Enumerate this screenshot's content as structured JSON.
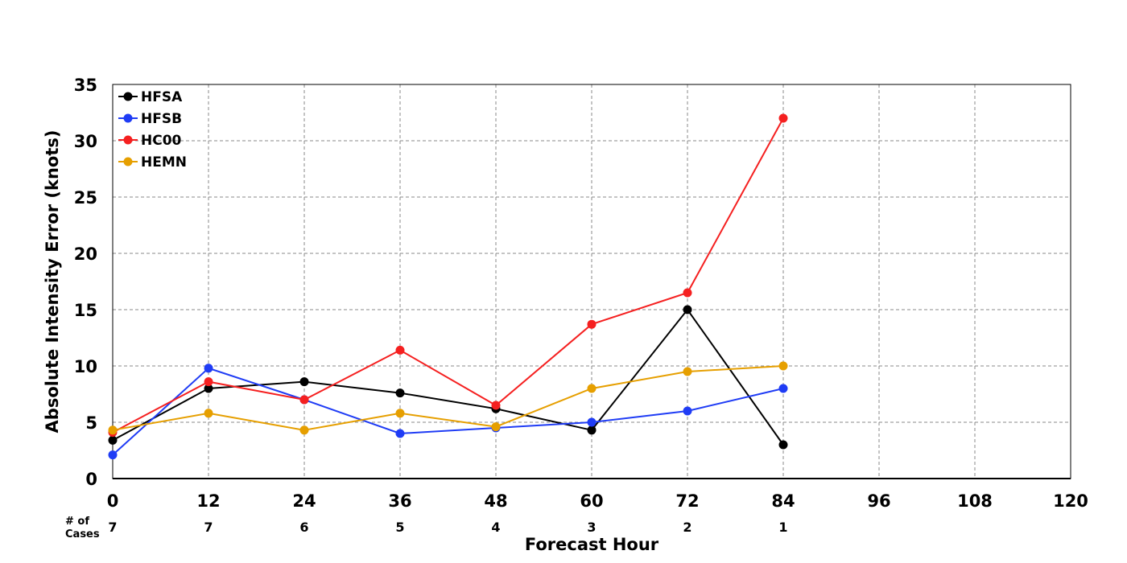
{
  "chart_data": {
    "type": "line",
    "xlabel": "Forecast Hour",
    "ylabel": "Absolute Intensity Error (knots)",
    "xlim": [
      0,
      120
    ],
    "ylim": [
      0,
      35
    ],
    "x_ticks": [
      0,
      12,
      24,
      36,
      48,
      60,
      72,
      84,
      96,
      108,
      120
    ],
    "y_ticks": [
      0,
      5,
      10,
      15,
      20,
      25,
      30,
      35
    ],
    "grid": true,
    "legend_position": "top-left",
    "cases_label": "# of\nCases",
    "cases": [
      {
        "x": 0,
        "n": "7"
      },
      {
        "x": 12,
        "n": "7"
      },
      {
        "x": 24,
        "n": "6"
      },
      {
        "x": 36,
        "n": "5"
      },
      {
        "x": 48,
        "n": "4"
      },
      {
        "x": 60,
        "n": "3"
      },
      {
        "x": 72,
        "n": "2"
      },
      {
        "x": 84,
        "n": "1"
      }
    ],
    "series": [
      {
        "name": "HFSA",
        "color": "#000000",
        "x": [
          0,
          12,
          24,
          36,
          48,
          60,
          72,
          84
        ],
        "values": [
          3.4,
          8.0,
          8.6,
          7.6,
          6.2,
          4.3,
          15.0,
          3.0
        ]
      },
      {
        "name": "HFSB",
        "color": "#1f3cf5",
        "x": [
          0,
          12,
          24,
          36,
          48,
          60,
          72,
          84
        ],
        "values": [
          2.1,
          9.8,
          7.0,
          4.0,
          4.5,
          5.0,
          6.0,
          8.0
        ]
      },
      {
        "name": "HC00",
        "color": "#f52020",
        "x": [
          0,
          12,
          24,
          36,
          48,
          60,
          72,
          84
        ],
        "values": [
          4.1,
          8.6,
          7.0,
          11.4,
          6.5,
          13.7,
          16.5,
          32.0
        ]
      },
      {
        "name": "HEMN",
        "color": "#e69f00",
        "x": [
          0,
          12,
          24,
          36,
          48,
          60,
          72,
          84
        ],
        "values": [
          4.3,
          5.8,
          4.3,
          5.8,
          4.6,
          8.0,
          9.5,
          10.0
        ]
      }
    ]
  }
}
